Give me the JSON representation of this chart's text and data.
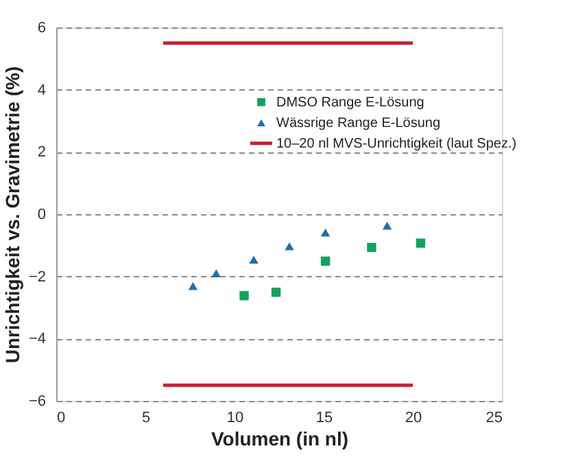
{
  "chart_data": {
    "type": "scatter",
    "xlabel": "Volumen (in nl)",
    "ylabel": "Unrichtigkeit vs. Gravimetrie (%)",
    "xlim": [
      0,
      25
    ],
    "xticks": [
      0,
      5,
      10,
      15,
      20,
      25
    ],
    "ylim": [
      -6,
      6
    ],
    "yticks": [
      -6,
      -4,
      -2,
      0,
      2,
      4,
      6
    ],
    "grid": "y",
    "legend": "top right",
    "series": [
      {
        "name": "DMSO Range E-Lösung",
        "color": "#17a05d",
        "marker": "square",
        "x": [
          10.54,
          12.33,
          15.1,
          17.69,
          20.44
        ],
        "values": [
          -2.62,
          -2.51,
          -1.51,
          -1.07,
          -0.93
        ]
      },
      {
        "name": "Wässrige Range E-Lösung",
        "color": "#1f6ea8",
        "marker": "triangle",
        "x": [
          7.67,
          8.97,
          11.08,
          13.08,
          15.1,
          18.56
        ],
        "values": [
          -2.31,
          -1.9,
          -1.46,
          -1.03,
          -0.59,
          -0.37
        ]
      },
      {
        "name": "10–20 nl MVS-Unrichtigkeit (laut Spez.)",
        "type": "line",
        "color": "#c8202e",
        "marker": "none",
        "x": [
          6,
          20
        ],
        "values": [
          5.5,
          5.5
        ]
      },
      {
        "type": "line",
        "color": "#c8202e",
        "marker": "none",
        "x": [
          6,
          20
        ],
        "values": [
          -5.5,
          -5.5
        ]
      }
    ]
  }
}
